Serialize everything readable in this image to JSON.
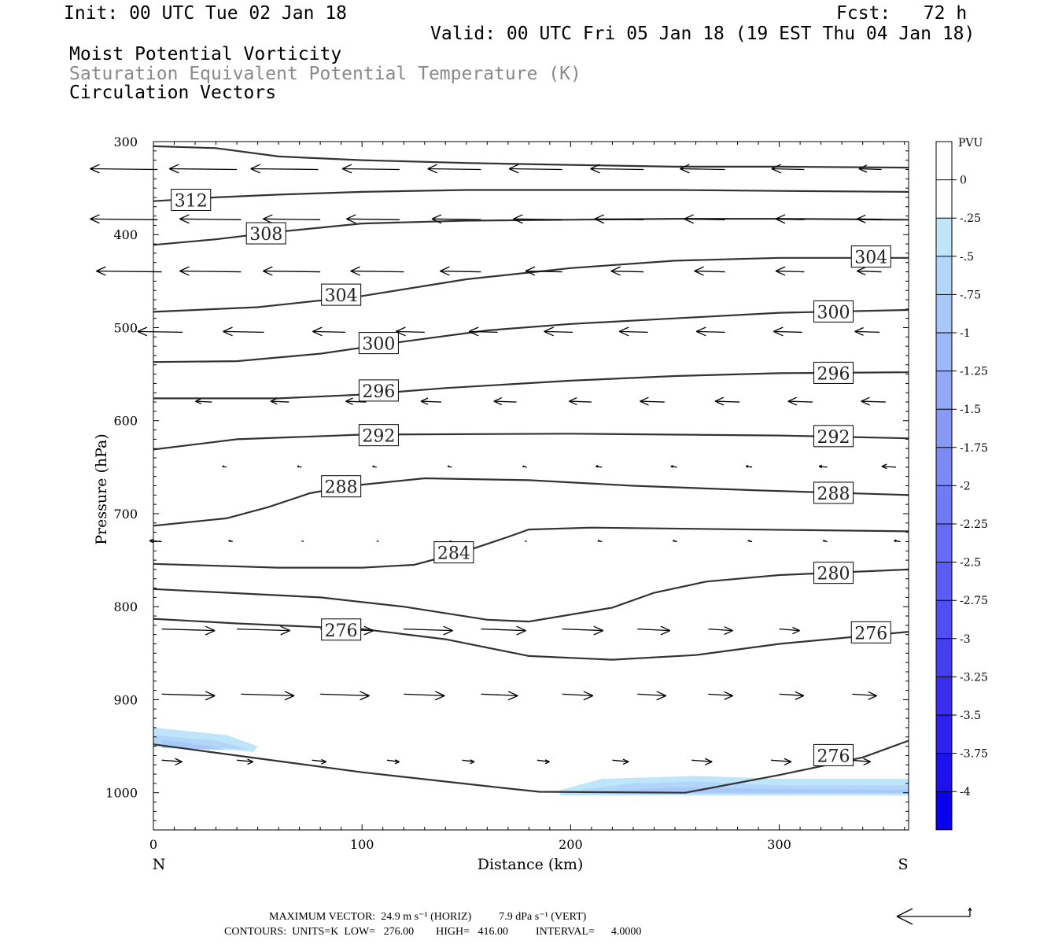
{
  "header": {
    "init": "Init: 00 UTC Tue 02 Jan 18",
    "fcst": "Fcst:   72 h",
    "valid": "Valid: 00 UTC Fri 05 Jan 18 (19 EST Thu 04 Jan 18)",
    "line1": "Moist Potential Vorticity",
    "line2": "Saturation Equivalent Potential Temperature (K)",
    "line3": "Circulation Vectors"
  },
  "footer": {
    "max_vector": "MAXIMUM VECTOR:  24.9 m s⁻¹ (HORIZ)          7.9 dPa s⁻¹ (VERT)",
    "contours": "CONTOURS:  UNITS=K  LOW=   276.00        HIGH=   416.00          INTERVAL=      4.0000"
  },
  "chart_data": {
    "type": "cross-section",
    "xlabel": "Distance (km)",
    "ylabel": "Pressure (hPa)",
    "xlim": [
      0,
      362
    ],
    "ylim": [
      1040,
      300
    ],
    "y_scale": "linear (pressure, inverted)",
    "x_ticks": [
      0,
      100,
      200,
      300
    ],
    "y_ticks": [
      300,
      400,
      500,
      600,
      700,
      800,
      900,
      1000
    ],
    "endpoint_labels": {
      "left": "N",
      "right": "S"
    },
    "colorbar": {
      "title": "PVU",
      "levels": [
        "0",
        "-.25",
        "-.5",
        "-.75",
        "-1",
        "-1.25",
        "-1.5",
        "-1.75",
        "-2",
        "-2.25",
        "-2.5",
        "-2.75",
        "-3",
        "-3.25",
        "-3.5",
        "-3.75",
        "-4"
      ],
      "colors": [
        "#ffffff",
        "#ffffff",
        "#bfe5fb",
        "#b2d6fa",
        "#a8c8f9",
        "#9db8f8",
        "#92a9f7",
        "#879af6",
        "#7c8af5",
        "#717cf4",
        "#666cf3",
        "#5b5df2",
        "#504ef1",
        "#453ff0",
        "#3a2fef",
        "#2f21ee",
        "#1f10ee",
        "#0b00ee"
      ]
    },
    "contours_theta_es": [
      {
        "value": 312,
        "points": [
          [
            0,
            305
          ],
          [
            30,
            307
          ],
          [
            60,
            316
          ],
          [
            100,
            320
          ],
          [
            150,
            323
          ],
          [
            200,
            325
          ],
          [
            250,
            327
          ],
          [
            300,
            327
          ],
          [
            362,
            328
          ]
        ]
      },
      {
        "value": 312,
        "points": [
          [
            0,
            364
          ],
          [
            30,
            360
          ],
          [
            60,
            357
          ],
          [
            100,
            354
          ],
          [
            150,
            352
          ],
          [
            200,
            352
          ],
          [
            250,
            352
          ],
          [
            300,
            353
          ],
          [
            362,
            354
          ]
        ]
      },
      {
        "value": 308,
        "points": [
          [
            0,
            411
          ],
          [
            30,
            405
          ],
          [
            60,
            397
          ],
          [
            100,
            388
          ],
          [
            150,
            385
          ],
          [
            200,
            384
          ],
          [
            250,
            383
          ],
          [
            300,
            383
          ],
          [
            362,
            384
          ]
        ]
      },
      {
        "value": 304,
        "points": [
          [
            0,
            483
          ],
          [
            50,
            478
          ],
          [
            100,
            466
          ],
          [
            150,
            448
          ],
          [
            200,
            436
          ],
          [
            250,
            428
          ],
          [
            300,
            425
          ],
          [
            362,
            425
          ]
        ]
      },
      {
        "value": 300,
        "points": [
          [
            0,
            537
          ],
          [
            40,
            536
          ],
          [
            80,
            528
          ],
          [
            120,
            515
          ],
          [
            160,
            503
          ],
          [
            200,
            496
          ],
          [
            250,
            490
          ],
          [
            300,
            484
          ],
          [
            362,
            481
          ]
        ]
      },
      {
        "value": 296,
        "points": [
          [
            0,
            576
          ],
          [
            60,
            576
          ],
          [
            100,
            572
          ],
          [
            140,
            565
          ],
          [
            200,
            557
          ],
          [
            250,
            552
          ],
          [
            300,
            549
          ],
          [
            362,
            548
          ]
        ]
      },
      {
        "value": 292,
        "points": [
          [
            0,
            631
          ],
          [
            40,
            620
          ],
          [
            100,
            615
          ],
          [
            200,
            614
          ],
          [
            300,
            616
          ],
          [
            362,
            619
          ]
        ]
      },
      {
        "value": 288,
        "points": [
          [
            0,
            713
          ],
          [
            35,
            705
          ],
          [
            55,
            693
          ],
          [
            75,
            678
          ],
          [
            95,
            670
          ],
          [
            130,
            662
          ],
          [
            180,
            664
          ],
          [
            230,
            670
          ],
          [
            290,
            675
          ],
          [
            362,
            680
          ]
        ]
      },
      {
        "value": 284,
        "points": [
          [
            0,
            754
          ],
          [
            60,
            758
          ],
          [
            100,
            758
          ],
          [
            125,
            755
          ],
          [
            150,
            740
          ],
          [
            170,
            725
          ],
          [
            180,
            717
          ],
          [
            210,
            715
          ],
          [
            362,
            719
          ]
        ]
      },
      {
        "value": 280,
        "points": [
          [
            0,
            781
          ],
          [
            80,
            790
          ],
          [
            120,
            800
          ],
          [
            160,
            814
          ],
          [
            180,
            816
          ],
          [
            220,
            801
          ],
          [
            240,
            785
          ],
          [
            265,
            773
          ],
          [
            300,
            766
          ],
          [
            362,
            760
          ]
        ]
      },
      {
        "value": 276,
        "points": [
          [
            0,
            813
          ],
          [
            40,
            818
          ],
          [
            100,
            824
          ],
          [
            140,
            835
          ],
          [
            180,
            853
          ],
          [
            220,
            857
          ],
          [
            260,
            852
          ],
          [
            300,
            840
          ],
          [
            362,
            827
          ]
        ]
      },
      {
        "value": 276,
        "points": [
          [
            0,
            948
          ],
          [
            50,
            963
          ],
          [
            100,
            978
          ],
          [
            160,
            993
          ],
          [
            185,
            999
          ],
          [
            255,
            1000
          ],
          [
            300,
            981
          ],
          [
            340,
            962
          ],
          [
            362,
            944
          ]
        ]
      }
    ],
    "contour_labels": [
      {
        "text": "312",
        "x": 18,
        "p": 363
      },
      {
        "text": "308",
        "x": 54,
        "p": 399
      },
      {
        "text": "304",
        "x": 90,
        "p": 465
      },
      {
        "text": "304",
        "x": 344,
        "p": 424
      },
      {
        "text": "300",
        "x": 108,
        "p": 517
      },
      {
        "text": "300",
        "x": 326,
        "p": 483
      },
      {
        "text": "296",
        "x": 108,
        "p": 568
      },
      {
        "text": "296",
        "x": 326,
        "p": 549
      },
      {
        "text": "292",
        "x": 108,
        "p": 616
      },
      {
        "text": "292",
        "x": 326,
        "p": 617
      },
      {
        "text": "288",
        "x": 90,
        "p": 671
      },
      {
        "text": "288",
        "x": 326,
        "p": 678
      },
      {
        "text": "284",
        "x": 144,
        "p": 742
      },
      {
        "text": "280",
        "x": 326,
        "p": 764
      },
      {
        "text": "276",
        "x": 90,
        "p": 825
      },
      {
        "text": "276",
        "x": 344,
        "p": 828
      },
      {
        "text": "276",
        "x": 326,
        "p": 960
      }
    ],
    "mpv_shading": [
      {
        "level": "-0.25",
        "points": [
          [
            0,
            930
          ],
          [
            35,
            938
          ],
          [
            50,
            950
          ],
          [
            48,
            956
          ],
          [
            30,
            953
          ],
          [
            0,
            946
          ]
        ]
      },
      {
        "level": "-0.5",
        "points": [
          [
            0,
            938
          ],
          [
            30,
            944
          ],
          [
            45,
            953
          ],
          [
            0,
            950
          ]
        ]
      },
      {
        "level": "-0.75",
        "points": [
          [
            4,
            943
          ],
          [
            25,
            949
          ],
          [
            35,
            954
          ],
          [
            4,
            952
          ]
        ]
      },
      {
        "level": "-0.25",
        "points": [
          [
            195,
            997
          ],
          [
            215,
            985
          ],
          [
            260,
            982
          ],
          [
            300,
            985
          ],
          [
            362,
            985
          ],
          [
            362,
            1003
          ],
          [
            195,
            1003
          ]
        ]
      },
      {
        "level": "-0.5",
        "points": [
          [
            205,
            997
          ],
          [
            230,
            990
          ],
          [
            260,
            988
          ],
          [
            300,
            992
          ],
          [
            362,
            992
          ],
          [
            362,
            1001
          ],
          [
            205,
            1001
          ]
        ]
      },
      {
        "level": "-0.75",
        "points": [
          [
            215,
            998
          ],
          [
            250,
            994
          ],
          [
            300,
            996
          ],
          [
            362,
            997
          ],
          [
            362,
            1000
          ],
          [
            215,
            1000
          ]
        ]
      }
    ],
    "vectors": [
      {
        "p": 330,
        "cols": [
          [
            2,
            -33
          ],
          [
            40,
            -33
          ],
          [
            79,
            -33
          ],
          [
            118,
            -28
          ],
          [
            157,
            -26
          ],
          [
            196,
            -26
          ],
          [
            235,
            -26
          ],
          [
            274,
            -22
          ],
          [
            312,
            -16
          ],
          [
            349,
            -11
          ]
        ]
      },
      {
        "p": 384,
        "cols": [
          [
            2,
            -33
          ],
          [
            42,
            -30
          ],
          [
            80,
            -28
          ],
          [
            118,
            -26
          ],
          [
            157,
            -24
          ],
          [
            196,
            -24
          ],
          [
            235,
            -24
          ],
          [
            274,
            -20
          ],
          [
            312,
            -14
          ],
          [
            349,
            -12
          ]
        ]
      },
      {
        "p": 440,
        "cols": [
          [
            4,
            -32
          ],
          [
            42,
            -30
          ],
          [
            80,
            -28
          ],
          [
            120,
            -26
          ],
          [
            157,
            -20
          ],
          [
            196,
            -18
          ],
          [
            235,
            -16
          ],
          [
            274,
            -15
          ],
          [
            312,
            -14
          ],
          [
            349,
            -12
          ]
        ]
      },
      {
        "p": 505,
        "cols": [
          [
            14,
            -22
          ],
          [
            53,
            -20
          ],
          [
            92,
            -16
          ],
          [
            130,
            -14
          ],
          [
            165,
            -14
          ],
          [
            201,
            -14
          ],
          [
            237,
            -14
          ],
          [
            274,
            -14
          ],
          [
            311,
            -14
          ],
          [
            348,
            -12
          ]
        ]
      },
      {
        "p": 580,
        "cols": [
          [
            28,
            -8
          ],
          [
            65,
            -9
          ],
          [
            102,
            -10
          ],
          [
            138,
            -10
          ],
          [
            174,
            -11
          ],
          [
            210,
            -11
          ],
          [
            245,
            -12
          ],
          [
            281,
            -12
          ],
          [
            316,
            -12
          ],
          [
            351,
            -12
          ]
        ]
      },
      {
        "p": 650,
        "cols": [
          [
            35,
            -2
          ],
          [
            71,
            -2
          ],
          [
            107,
            -2
          ],
          [
            143,
            -2
          ],
          [
            179,
            -2
          ],
          [
            215,
            -3
          ],
          [
            251,
            -3
          ],
          [
            287,
            -3
          ],
          [
            323,
            -4
          ],
          [
            356,
            -7
          ]
        ]
      },
      {
        "p": 730,
        "cols": [
          [
            4,
            -6
          ],
          [
            38,
            -2
          ],
          [
            72,
            -1
          ],
          [
            108,
            -1
          ],
          [
            143,
            -1
          ],
          [
            179,
            -1
          ],
          [
            215,
            -2
          ],
          [
            251,
            -2
          ],
          [
            287,
            -2
          ],
          [
            323,
            -2
          ],
          [
            358,
            -3
          ]
        ]
      },
      {
        "p": 824,
        "cols": [
          [
            4,
            26
          ],
          [
            40,
            26
          ],
          [
            80,
            26
          ],
          [
            120,
            24
          ],
          [
            157,
            22
          ],
          [
            196,
            20
          ],
          [
            232,
            16
          ],
          [
            266,
            12
          ],
          [
            300,
            10
          ],
          [
            335,
            9
          ]
        ]
      },
      {
        "p": 894,
        "cols": [
          [
            4,
            26
          ],
          [
            42,
            26
          ],
          [
            80,
            24
          ],
          [
            120,
            20
          ],
          [
            157,
            18
          ],
          [
            196,
            15
          ],
          [
            232,
            14
          ],
          [
            266,
            12
          ],
          [
            300,
            12
          ],
          [
            335,
            12
          ]
        ]
      },
      {
        "p": 965,
        "cols": [
          [
            4,
            10
          ],
          [
            40,
            8
          ],
          [
            76,
            7
          ],
          [
            112,
            6
          ],
          [
            148,
            6
          ],
          [
            184,
            6
          ],
          [
            220,
            8
          ],
          [
            258,
            10
          ],
          [
            296,
            10
          ],
          [
            334,
            10
          ]
        ]
      }
    ],
    "reference_vector_label": ""
  }
}
